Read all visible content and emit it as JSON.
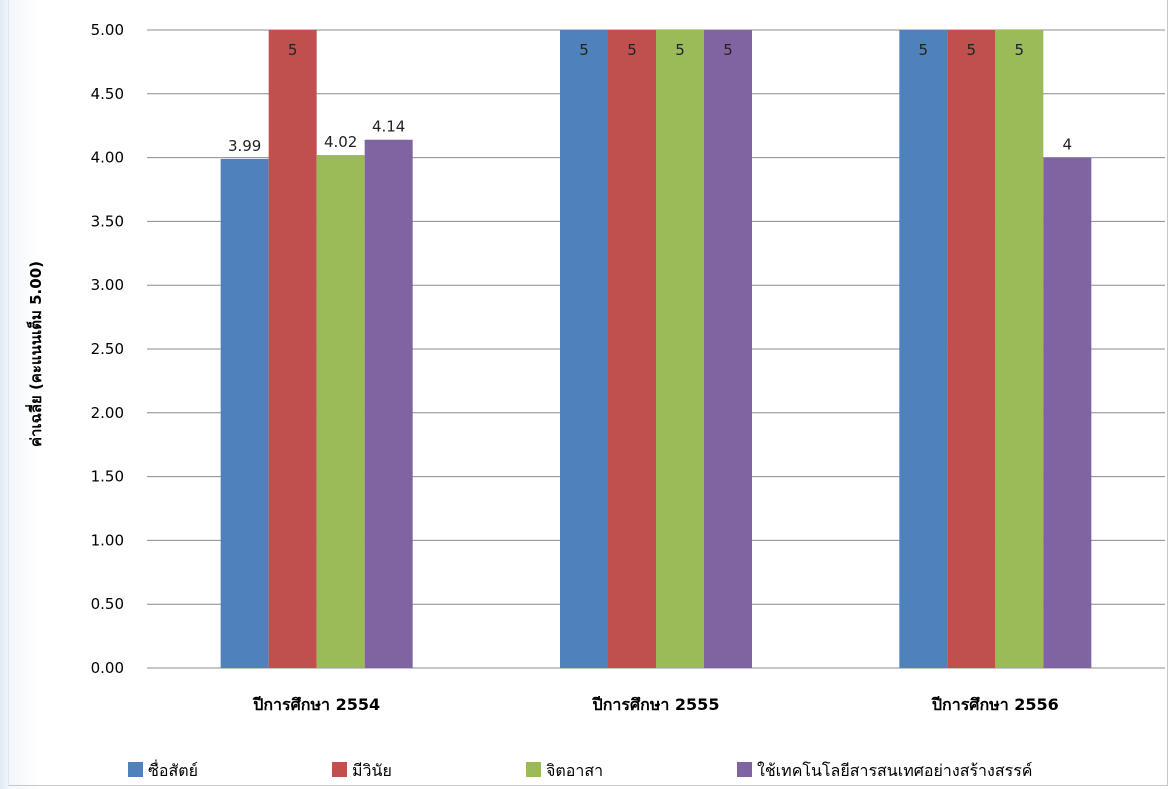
{
  "chart_data": {
    "type": "bar",
    "title": "",
    "xlabel": "",
    "ylabel": "ค่าเฉลี่ย (คะแนนเต็ม 5.00)",
    "ylim": [
      0,
      5
    ],
    "yticks": [
      "0.00",
      "0.50",
      "1.00",
      "1.50",
      "2.00",
      "2.50",
      "3.00",
      "3.50",
      "4.00",
      "4.50",
      "5.00"
    ],
    "ytick_values": [
      0,
      0.5,
      1,
      1.5,
      2,
      2.5,
      3,
      3.5,
      4,
      4.5,
      5
    ],
    "categories": [
      "ปีการศึกษา 2554",
      "ปีการศึกษา 2555",
      "ปีการศึกษา 2556"
    ],
    "grid": true,
    "legend_position": "bottom",
    "series": [
      {
        "name": "ซื่อสัตย์",
        "color": "#4f81bd",
        "values": [
          3.99,
          5,
          5
        ],
        "labels": [
          "3.99",
          "5",
          "5"
        ]
      },
      {
        "name": "มีวินัย",
        "color": "#c0504d",
        "values": [
          5,
          5,
          5
        ],
        "labels": [
          "5",
          "5",
          "5"
        ]
      },
      {
        "name": "จิตอาสา",
        "color": "#9bbb59",
        "values": [
          4.02,
          5,
          5
        ],
        "labels": [
          "4.02",
          "5",
          "5"
        ]
      },
      {
        "name": "ใช้เทคโนโลยีสารสนเทศอย่างสร้างสรรค์",
        "color": "#8064a2",
        "values": [
          4.14,
          5,
          4
        ],
        "labels": [
          "4.14",
          "5",
          "4"
        ]
      }
    ]
  }
}
